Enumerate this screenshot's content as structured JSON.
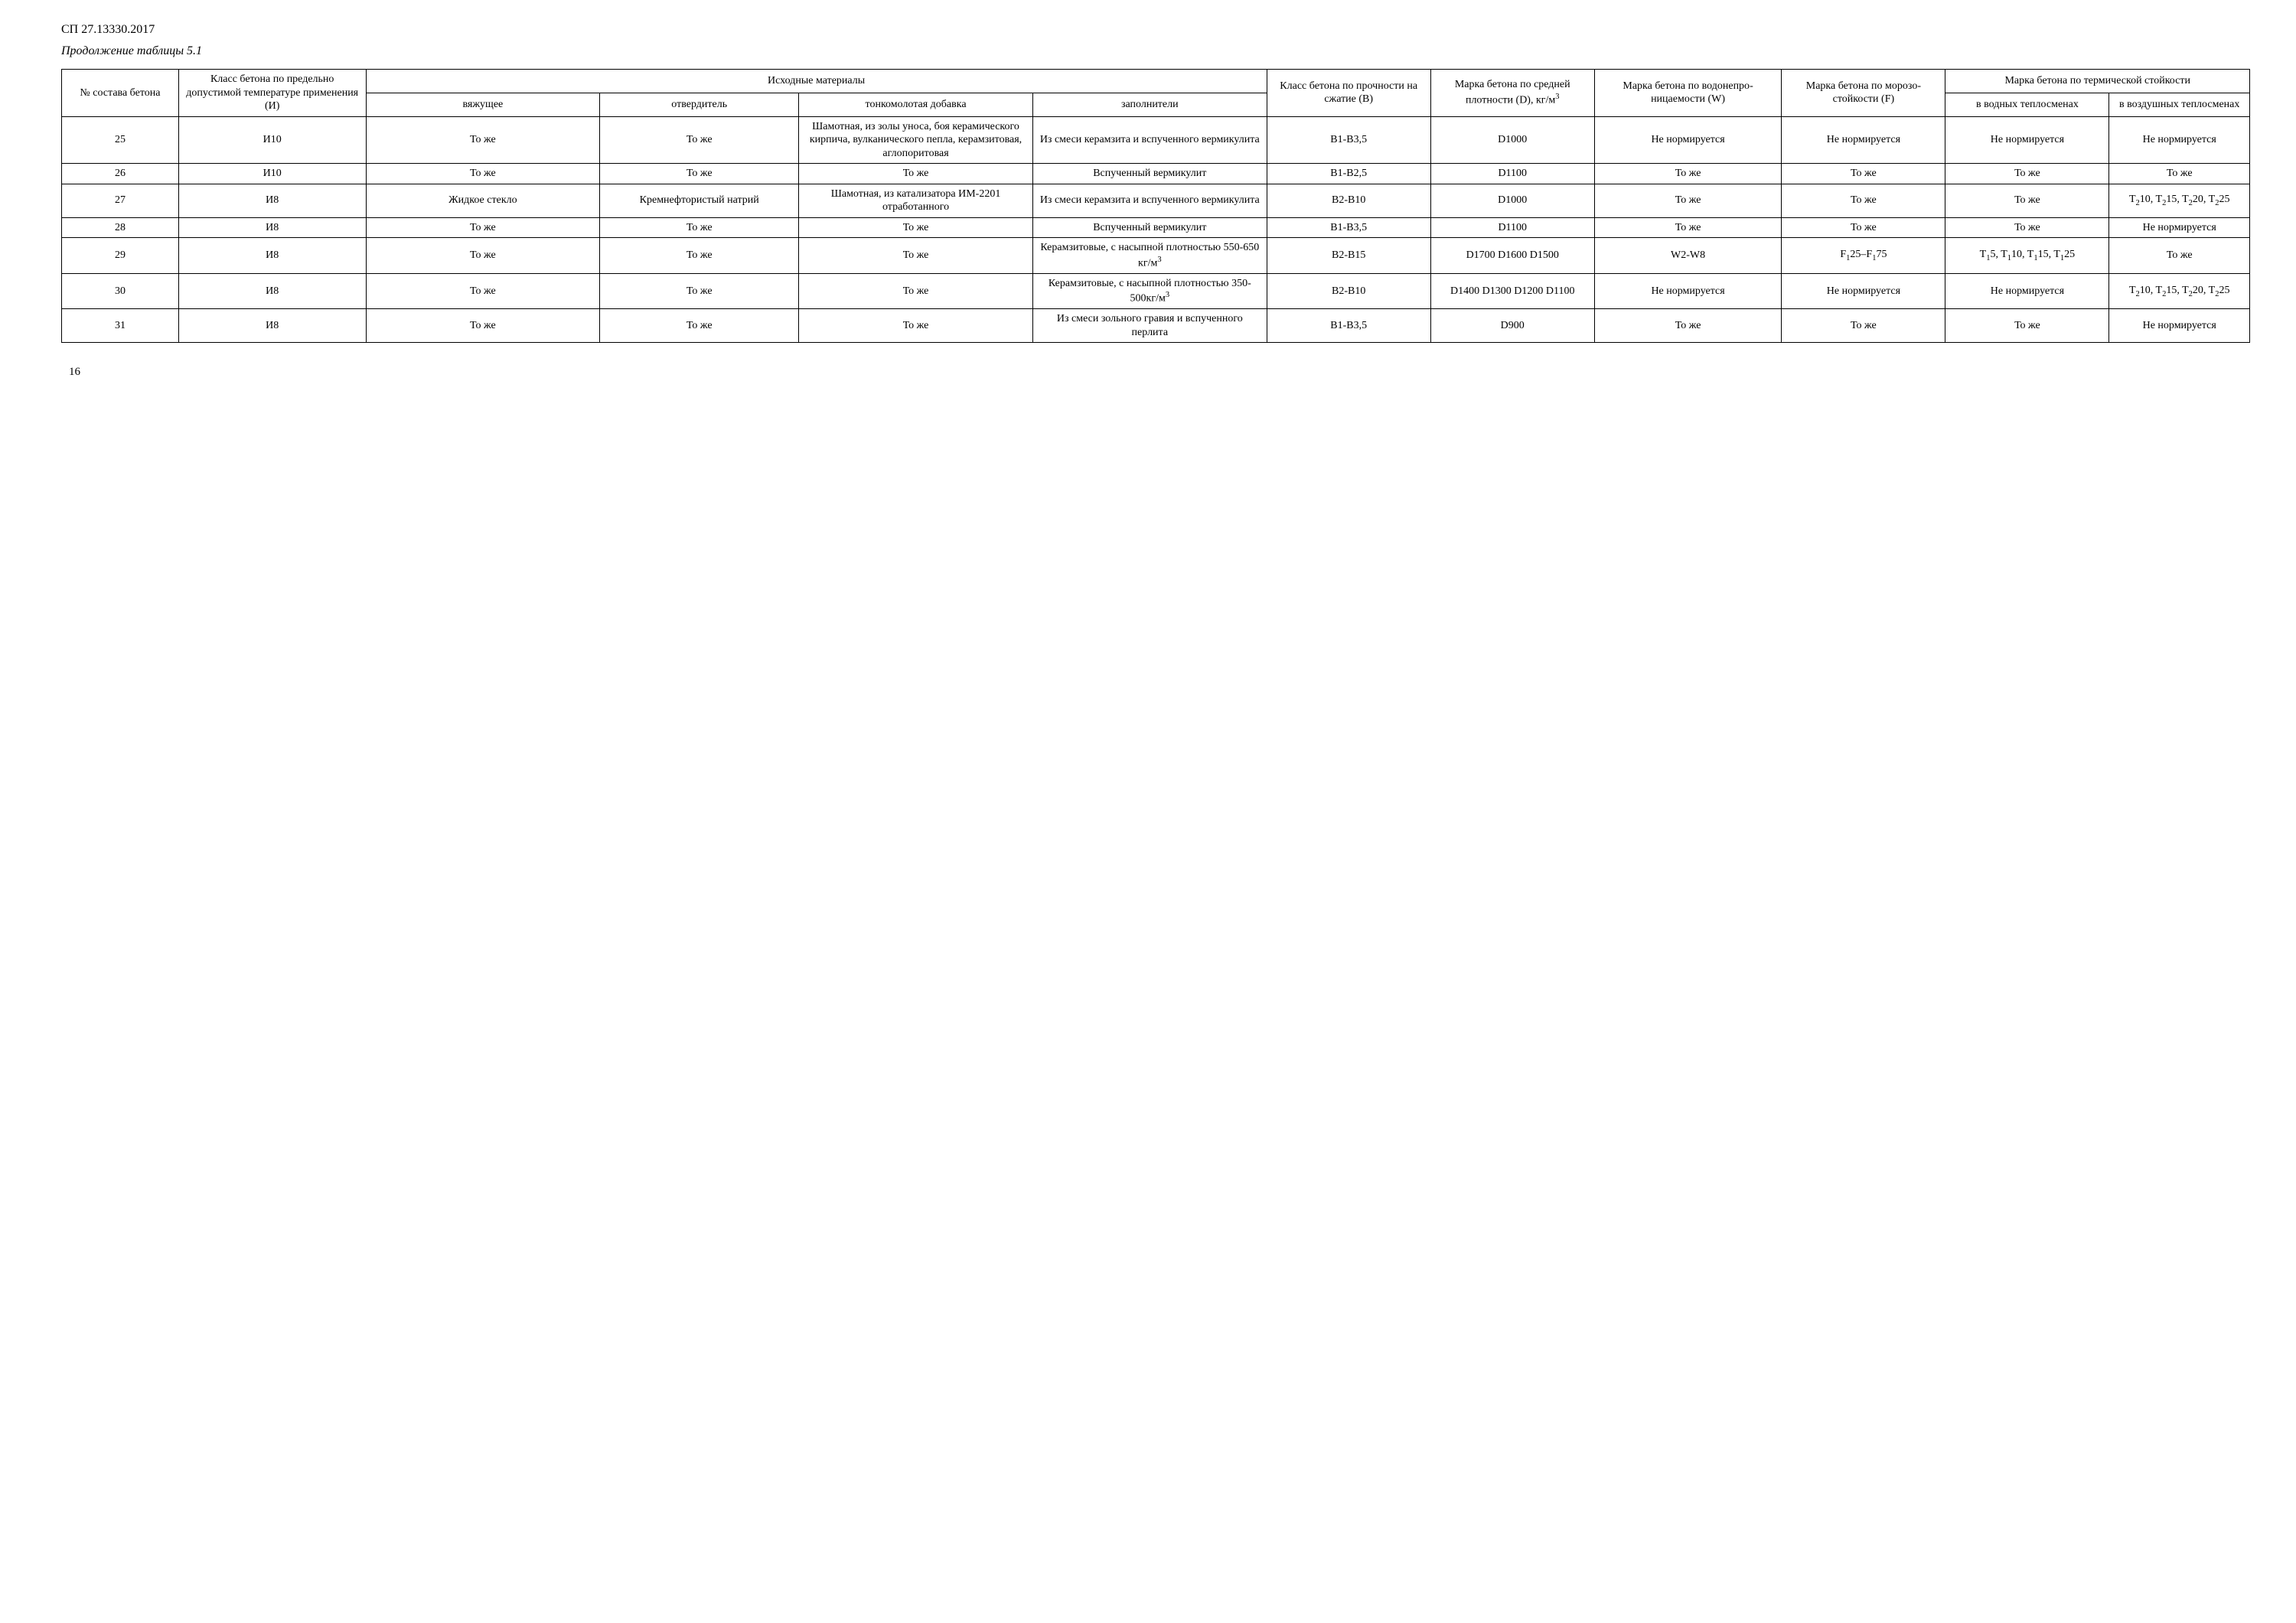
{
  "doc_code": "СП 27.13330.2017",
  "table_title": "Продолжение таблицы 5.1",
  "page_number": "16",
  "headers": {
    "col1": "№ состава бетона",
    "col2": "Класс бетона по предельно допустимой температуре применения (И)",
    "materials_group": "Исходные материалы",
    "col3": "вяжущее",
    "col4": "отвердитель",
    "col5": "тонкомолотая добавка",
    "col6": "заполнители",
    "col7": "Класс бетона по прочности на сжатие (В)",
    "col8_html": "Марка бетона по средней плотности (D), кг/м<sup>3</sup>",
    "col9": "Марка бетона по водонепро­ницаемости (W)",
    "col10": "Марка бетона по морозо­стойкости (F)",
    "thermal_group": "Марка бетона по термической стойкости",
    "col11": "в водных тепло­сменах",
    "col12": "в воз­душных тепло­сменах"
  },
  "rows": [
    {
      "n": "25",
      "cls_i": "И10",
      "binder": "То же",
      "hardener": "То же",
      "additive": "Шамотная, из золы уноса, боя керамического кирпича, вулканического пепла, керамзитовая, аглопоритовая",
      "fillers": "Из смеси керамзита и вспученного вермикулита",
      "b": "В1-В3,5",
      "d": "D1000",
      "w": "Не норми­руется",
      "f": "Не норми­руется",
      "t_water": "Не норми­руется",
      "t_air": "Не норми­руется"
    },
    {
      "n": "26",
      "cls_i": "И10",
      "binder": "То же",
      "hardener": "То же",
      "additive": "То же",
      "fillers": "Вспученный вермикулит",
      "b": "В1-В2,5",
      "d": "D1100",
      "w": "То же",
      "f": "То же",
      "t_water": "То же",
      "t_air": "То же"
    },
    {
      "n": "27",
      "cls_i": "И8",
      "binder": "Жидкое стекло",
      "hardener": "Кремнефтори­стый натрий",
      "additive": "Шамотная, из катализатора ИМ-2201 отработанного",
      "fillers": "Из смеси керамзита и вспученного вермикулита",
      "b": "В2-В10",
      "d": "D1000",
      "w": "То же",
      "f": "То же",
      "t_water": "То же",
      "t_air_html": "T<sub>2</sub>10, T<sub>2</sub>15, T<sub>2</sub>20, T<sub>2</sub>25"
    },
    {
      "n": "28",
      "cls_i": "И8",
      "binder": "То же",
      "hardener": "То же",
      "additive": "То же",
      "fillers": "Вспученный вермикулит",
      "b": "В1-В3,5",
      "d": "D1100",
      "w": "То же",
      "f": "То же",
      "t_water": "То же",
      "t_air": "Не норми­руется"
    },
    {
      "n": "29",
      "cls_i": "И8",
      "binder": "То же",
      "hardener": "То же",
      "additive": "То же",
      "fillers_html": "Керамзитовые, с насыпной плотностью 550-650 кг/м<sup>3</sup>",
      "b": "В2-В15",
      "d": "D1700 D1600 D1500",
      "w": "W2-W8",
      "f_html": "F<sub>1</sub>25–F<sub>1</sub>75",
      "t_water_html": "T<sub>1</sub>5, T<sub>1</sub>10, T<sub>1</sub>15, T<sub>1</sub>25",
      "t_air": "То же"
    },
    {
      "n": "30",
      "cls_i": "И8",
      "binder": "То же",
      "hardener": "То же",
      "additive": "То же",
      "fillers_html": "Керамзитовые, с насыпной плотностью 350-500кг/м<sup>3</sup>",
      "b": "В2-В10",
      "d": "D1400 D1300 D1200 D1100",
      "w": "Не норми­руется",
      "f": "Не норми­руется",
      "t_water": "Не норми­руется",
      "t_air_html": "T<sub>2</sub>10, T<sub>2</sub>15, T<sub>2</sub>20, T<sub>2</sub>25"
    },
    {
      "n": "31",
      "cls_i": "И8",
      "binder": "То же",
      "hardener": "То же",
      "additive": "То же",
      "fillers": "Из смеси зольного гравия и вспученного перлита",
      "b": "В1-В3,5",
      "d": "D900",
      "w": "То же",
      "f": "То же",
      "t_water": "То же",
      "t_air": "Не норми­руется"
    }
  ]
}
